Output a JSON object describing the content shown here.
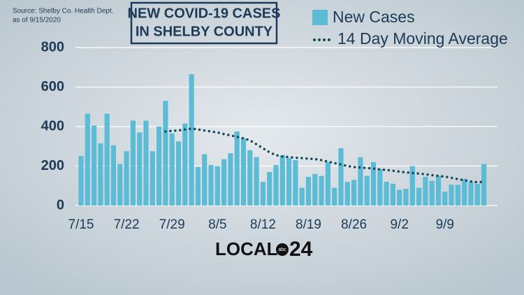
{
  "chart_data": {
    "type": "bar",
    "title_lines": [
      "NEW COVID-19 CASES",
      "IN SHELBY COUNTY"
    ],
    "source_lines": [
      "Source:  Shelby Co. Health Dept.",
      "as of 9/15/2020"
    ],
    "logo": {
      "word": "LOCAL",
      "badge": "abc",
      "number": "24"
    },
    "categories": [
      "7/15",
      null,
      null,
      null,
      null,
      null,
      null,
      "7/22",
      null,
      null,
      null,
      null,
      null,
      null,
      "7/29",
      null,
      null,
      null,
      null,
      null,
      null,
      "8/5",
      null,
      null,
      null,
      null,
      null,
      null,
      "8/12",
      null,
      null,
      null,
      null,
      null,
      null,
      "8/19",
      null,
      null,
      null,
      null,
      null,
      null,
      "8/26",
      null,
      null,
      null,
      null,
      null,
      null,
      "9/2",
      null,
      null,
      null,
      null,
      null,
      null,
      "9/9",
      null,
      null,
      null,
      null,
      null,
      null
    ],
    "series": [
      {
        "name": "New Cases",
        "color": "#5cbcd6",
        "values": [
          250,
          465,
          405,
          315,
          465,
          305,
          210,
          275,
          430,
          370,
          430,
          275,
          400,
          530,
          365,
          325,
          415,
          665,
          195,
          260,
          205,
          200,
          235,
          265,
          375,
          340,
          280,
          245,
          120,
          170,
          205,
          255,
          240,
          230,
          90,
          145,
          160,
          150,
          220,
          90,
          290,
          120,
          130,
          245,
          150,
          220,
          185,
          120,
          110,
          80,
          85,
          200,
          90,
          145,
          125,
          150,
          70,
          105,
          105,
          135,
          120,
          110,
          210
        ]
      },
      {
        "name": "14 Day Moving Average",
        "color": "#14485a",
        "style": "dotted",
        "values": [
          null,
          null,
          null,
          null,
          null,
          null,
          null,
          null,
          null,
          null,
          null,
          null,
          null,
          375,
          378,
          380,
          385,
          390,
          385,
          380,
          375,
          370,
          362,
          355,
          348,
          340,
          330,
          310,
          290,
          270,
          255,
          248,
          245,
          242,
          240,
          237,
          235,
          230,
          222,
          215,
          208,
          200,
          195,
          192,
          190,
          187,
          183,
          180,
          176,
          172,
          168,
          165,
          162,
          158,
          154,
          150,
          146,
          140,
          134,
          128,
          122,
          118,
          120
        ]
      }
    ],
    "ylim": [
      0,
      800
    ],
    "yticks": [
      0,
      200,
      400,
      600,
      800
    ],
    "grid": true
  }
}
